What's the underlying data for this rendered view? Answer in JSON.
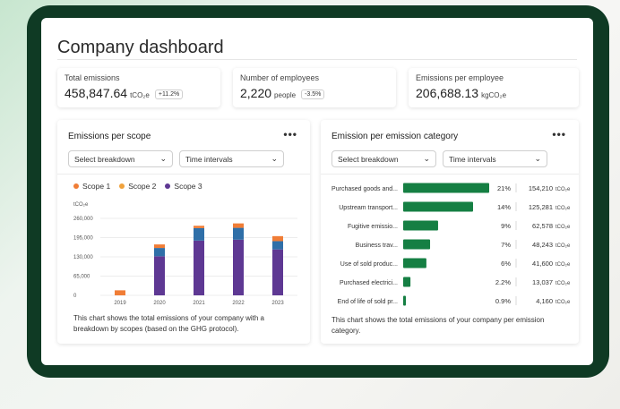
{
  "page": {
    "title": "Company dashboard"
  },
  "kpis": [
    {
      "label": "Total emissions",
      "value": "458,847.64",
      "unit": "tCO₂e",
      "badge": "+11.2%"
    },
    {
      "label": "Number of employees",
      "value": "2,220",
      "unit": "people",
      "badge": "-3.5%"
    },
    {
      "label": "Emissions per employee",
      "value": "206,688.13",
      "unit": "kgCO₂e",
      "badge": ""
    }
  ],
  "scope_card": {
    "title": "Emissions per scope",
    "more": "•••",
    "breakdown_label": "Select breakdown",
    "interval_label": "Time intervals",
    "unit_label": "tCO₂e",
    "caption": "This chart shows the total emissions of your company with a breakdown by scopes (based on the GHG protocol)."
  },
  "category_card": {
    "title": "Emission per emission category",
    "more": "•••",
    "breakdown_label": "Select breakdown",
    "interval_label": "Time intervals",
    "caption": "This chart shows the total emissions of your company per emission category."
  },
  "icons": {
    "more": "more-horizontal-icon",
    "dropdown": "chevron-down-icon"
  },
  "colors": {
    "scope1": "#f07d36",
    "scope2": "#2f6fa8",
    "scope3": "#5e3893",
    "category_bar": "#157f43",
    "frame": "#0f3a24"
  },
  "chart_data": [
    {
      "type": "bar",
      "stacked": true,
      "categories": [
        "2019",
        "2020",
        "2021",
        "2022",
        "2023"
      ],
      "series": [
        {
          "name": "Scope 3",
          "color": "#5e3893",
          "values": [
            0,
            132000,
            185000,
            188000,
            155000
          ]
        },
        {
          "name": "Scope 2",
          "color": "#2f6fa8",
          "values": [
            0,
            28000,
            42000,
            40000,
            28000
          ]
        },
        {
          "name": "Scope 1",
          "color": "#f07d36",
          "values": [
            17000,
            12000,
            8000,
            15000,
            17000
          ]
        }
      ],
      "legend": [
        "Scope 1",
        "Scope 2",
        "Scope 3"
      ],
      "yticks": [
        {
          "value": 0,
          "label": "0"
        },
        {
          "value": 65000,
          "label": "65,000"
        },
        {
          "value": 130000,
          "label": "130,000"
        },
        {
          "value": 195000,
          "label": "195,000"
        },
        {
          "value": 260000,
          "label": "260,000"
        }
      ],
      "ylim": [
        0,
        260000
      ],
      "ylabel": "tCO₂e",
      "grid": true,
      "legend_position": "top-left"
    },
    {
      "type": "bar",
      "orientation": "horizontal",
      "categories": [
        "Purchased goods and...",
        "Upstream transport...",
        "Fugitive emissio...",
        "Business trav...",
        "Use of sold produc...",
        "Purchased electrici...",
        "End of life of sold pr..."
      ],
      "values": [
        154210,
        125281,
        62578,
        48243,
        41600,
        13037,
        4160
      ],
      "value_labels": [
        "154,210",
        "125,281",
        "62,578",
        "48,243",
        "41,600",
        "13,037",
        "4,160"
      ],
      "percents": [
        "21%",
        "14%",
        "9%",
        "7%",
        "6%",
        "2.2%",
        "0.9%"
      ],
      "unit": "tCO₂e",
      "color": "#157f43"
    }
  ]
}
